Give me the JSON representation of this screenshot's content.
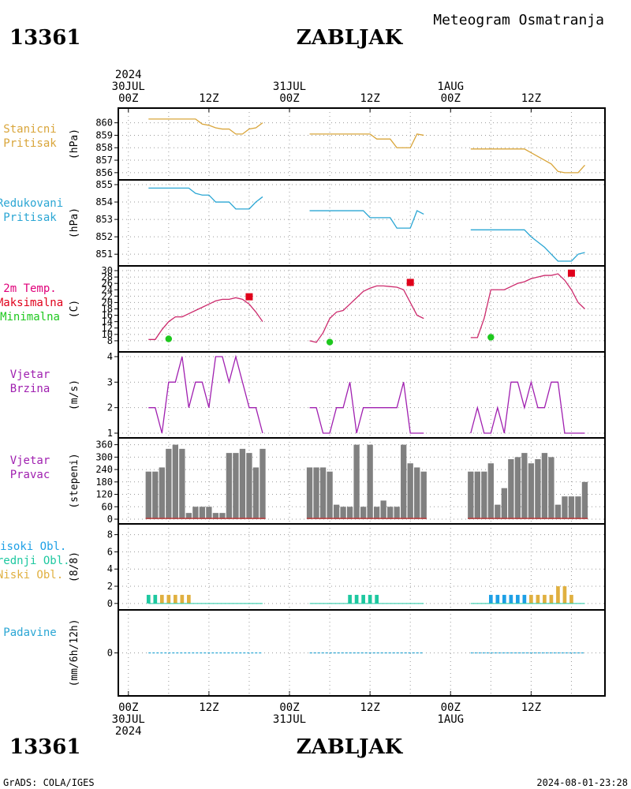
{
  "header": {
    "station_id": "13361",
    "station_name": "ZABLJAK",
    "meteogram_title": "Meteogram  Osmatranja"
  },
  "footer": {
    "station_id": "13361",
    "station_name": "ZABLJAK",
    "credit": "GrADS: COLA/IGES",
    "timestamp": "2024-08-01-23:28"
  },
  "time_axis": {
    "top_labels": [
      {
        "hour": 0,
        "lines": [
          "2024",
          "30JUL",
          "00Z"
        ]
      },
      {
        "hour": 12,
        "lines": [
          "12Z"
        ]
      },
      {
        "hour": 24,
        "lines": [
          "31JUL",
          "00Z"
        ]
      },
      {
        "hour": 36,
        "lines": [
          "12Z"
        ]
      },
      {
        "hour": 48,
        "lines": [
          "1AUG",
          "00Z"
        ]
      },
      {
        "hour": 60,
        "lines": [
          "12Z"
        ]
      }
    ],
    "bottom_labels": [
      {
        "hour": 0,
        "lines": [
          "00Z",
          "30JUL",
          "2024"
        ]
      },
      {
        "hour": 12,
        "lines": [
          "12Z"
        ]
      },
      {
        "hour": 24,
        "lines": [
          "00Z",
          "31JUL"
        ]
      },
      {
        "hour": 36,
        "lines": [
          "12Z"
        ]
      },
      {
        "hour": 48,
        "lines": [
          "00Z",
          "1AUG"
        ]
      },
      {
        "hour": 60,
        "lines": [
          "12Z"
        ]
      }
    ]
  },
  "colors": {
    "station_pressure": "#d9a53a",
    "reduced_pressure": "#2aa6d4",
    "max_temp": "#e0001a",
    "min_temp": "#1ec81e",
    "temperature_line": "#cc2a6c",
    "wind": "#a020b0",
    "bars": "#808080",
    "high_cloud": "#1ea0e6",
    "mid_cloud": "#1ec8a0",
    "low_cloud": "#e0b040",
    "precip": "#2aa6d4",
    "grid": "#999999"
  },
  "chart_data": [
    {
      "type": "line",
      "id": "station_pressure",
      "legend": [
        "Stanicni",
        "Pritisak"
      ],
      "ylabel": "(hPa)",
      "ylim": [
        855.8,
        860.8
      ],
      "yticks": [
        856,
        857,
        858,
        859,
        860
      ],
      "grid": true,
      "segments": [
        {
          "x": [
            3,
            5,
            7,
            9,
            10,
            10.5,
            11,
            12,
            13,
            14,
            15,
            16,
            17,
            18,
            19,
            20
          ],
          "y": [
            860.3,
            860.3,
            860.3,
            860.3,
            860.3,
            860.1,
            859.9,
            859.8,
            859.6,
            859.5,
            859.5,
            859.1,
            859.1,
            859.5,
            859.6,
            860.0
          ]
        },
        {
          "x": [
            27,
            29,
            31,
            33,
            35,
            36,
            37,
            38,
            39,
            40,
            41,
            42,
            43,
            44
          ],
          "y": [
            859.1,
            859.1,
            859.1,
            859.1,
            859.1,
            859.1,
            858.7,
            858.7,
            858.7,
            858.0,
            858.0,
            858.0,
            859.1,
            859.0
          ]
        },
        {
          "x": [
            51,
            53,
            55,
            57,
            59,
            60,
            61,
            62,
            63,
            64,
            65,
            66,
            67,
            68
          ],
          "y": [
            857.9,
            857.9,
            857.9,
            857.9,
            857.9,
            857.6,
            857.3,
            857.0,
            856.7,
            856.1,
            856.0,
            856.0,
            856.0,
            856.6
          ]
        }
      ]
    },
    {
      "type": "line",
      "id": "reduced_pressure",
      "legend": [
        "Redukovani",
        "Pritisak"
      ],
      "ylabel": "(hPa)",
      "ylim": [
        850.6,
        855.0
      ],
      "yticks": [
        851,
        852,
        853,
        854,
        855
      ],
      "grid": true,
      "segments": [
        {
          "x": [
            3,
            5,
            7,
            9,
            10,
            11,
            12,
            13,
            14,
            15,
            16,
            17,
            18,
            19,
            20
          ],
          "y": [
            854.8,
            854.8,
            854.8,
            854.8,
            854.5,
            854.4,
            854.4,
            854.0,
            854.0,
            854.0,
            853.6,
            853.6,
            853.6,
            854.0,
            854.3
          ]
        },
        {
          "x": [
            27,
            29,
            31,
            33,
            35,
            36,
            37,
            38,
            39,
            40,
            41,
            42,
            43,
            44
          ],
          "y": [
            853.5,
            853.5,
            853.5,
            853.5,
            853.5,
            853.1,
            853.1,
            853.1,
            853.1,
            852.5,
            852.5,
            852.5,
            853.5,
            853.3
          ]
        },
        {
          "x": [
            51,
            53,
            55,
            57,
            59,
            60,
            61,
            62,
            63,
            64,
            65,
            66,
            67,
            68
          ],
          "y": [
            852.4,
            852.4,
            852.4,
            852.4,
            852.4,
            852.0,
            851.7,
            851.4,
            851.0,
            850.6,
            850.6,
            850.6,
            851.0,
            851.1
          ]
        }
      ]
    },
    {
      "type": "line",
      "id": "temperature",
      "legend": [
        "2m Temp.",
        "Maksimalna",
        "Minimalna"
      ],
      "ylabel": "(C)",
      "ylim": [
        6,
        30
      ],
      "yticks": [
        8,
        10,
        12,
        14,
        16,
        18,
        20,
        22,
        24,
        26,
        28,
        30
      ],
      "grid": true,
      "segments": [
        {
          "x": [
            3,
            4,
            5,
            6,
            7,
            8,
            9,
            10,
            11,
            12,
            13,
            14,
            15,
            16,
            17,
            18,
            19,
            20
          ],
          "y": [
            8.4,
            8.4,
            11.5,
            14,
            15.5,
            15.5,
            16.5,
            17.5,
            18.5,
            19.5,
            20.5,
            21,
            21,
            21.5,
            21,
            19.5,
            17,
            14
          ]
        },
        {
          "x": [
            27,
            28,
            29,
            30,
            31,
            32,
            33,
            34,
            35,
            36,
            37,
            38,
            39,
            40,
            41,
            42,
            43,
            44
          ],
          "y": [
            8,
            7.5,
            10.5,
            15,
            17,
            17.5,
            19.5,
            21.5,
            23.5,
            24.5,
            25.2,
            25.2,
            25,
            24.8,
            24,
            20,
            16,
            15
          ]
        },
        {
          "x": [
            51,
            52,
            53,
            54,
            55,
            56,
            57,
            58,
            59,
            60,
            61,
            62,
            63,
            64,
            65,
            66,
            67,
            68
          ],
          "y": [
            9,
            9,
            15,
            24,
            24,
            24,
            25,
            26,
            26.5,
            27.5,
            28,
            28.5,
            28.5,
            29,
            27,
            24,
            20,
            18
          ]
        }
      ],
      "maxima": [
        {
          "x": 18,
          "y": 21.8
        },
        {
          "x": 42,
          "y": 26.3
        },
        {
          "x": 66,
          "y": 29.2
        }
      ],
      "minima": [
        {
          "x": 6,
          "y": 8.6
        },
        {
          "x": 30,
          "y": 7.6
        },
        {
          "x": 54,
          "y": 9.1
        }
      ]
    },
    {
      "type": "line",
      "id": "wind_speed",
      "legend": [
        "Vjetar",
        "Brzina"
      ],
      "ylabel": "(m/s)",
      "ylim": [
        1,
        4
      ],
      "yticks": [
        1,
        2,
        3,
        4
      ],
      "grid": true,
      "segments": [
        {
          "x": [
            3,
            4,
            5,
            6,
            7,
            8,
            9,
            10,
            11,
            12,
            13,
            14,
            15,
            16,
            17,
            18,
            19,
            20
          ],
          "y": [
            2,
            2,
            1,
            3,
            3,
            4,
            2,
            3,
            3,
            2,
            4,
            4,
            3,
            4,
            3,
            2,
            2,
            1
          ]
        },
        {
          "x": [
            27,
            28,
            29,
            30,
            31,
            32,
            33,
            34,
            35,
            36,
            37,
            38,
            39,
            40,
            41,
            42,
            43,
            44
          ],
          "y": [
            2,
            2,
            1,
            1,
            2,
            2,
            3,
            1,
            2,
            2,
            2,
            2,
            2,
            2,
            3,
            1,
            1,
            1
          ]
        },
        {
          "x": [
            51,
            52,
            53,
            54,
            55,
            56,
            57,
            58,
            59,
            60,
            61,
            62,
            63,
            64,
            65,
            66,
            67,
            68
          ],
          "y": [
            1,
            2,
            1,
            1,
            2,
            1,
            3,
            3,
            2,
            3,
            2,
            2,
            3,
            3,
            1,
            1,
            1,
            1
          ]
        }
      ]
    },
    {
      "type": "bar",
      "id": "wind_direction",
      "legend": [
        "Vjetar",
        "Pravac"
      ],
      "ylabel": "(stepeni)",
      "ylim": [
        0,
        370
      ],
      "yticks": [
        0,
        60,
        120,
        180,
        240,
        300,
        360
      ],
      "grid": true,
      "x": [
        3,
        4,
        5,
        6,
        7,
        8,
        9,
        10,
        11,
        12,
        13,
        14,
        15,
        16,
        17,
        18,
        19,
        20,
        27,
        28,
        29,
        30,
        31,
        32,
        33,
        34,
        35,
        36,
        37,
        38,
        39,
        40,
        41,
        42,
        43,
        44,
        51,
        52,
        53,
        54,
        55,
        56,
        57,
        58,
        59,
        60,
        61,
        62,
        63,
        64,
        65,
        66,
        67,
        68
      ],
      "values": [
        230,
        230,
        250,
        340,
        360,
        340,
        30,
        60,
        60,
        60,
        30,
        30,
        320,
        320,
        340,
        320,
        250,
        340,
        250,
        250,
        250,
        230,
        70,
        60,
        60,
        360,
        60,
        360,
        60,
        90,
        60,
        60,
        360,
        270,
        250,
        230,
        230,
        230,
        230,
        270,
        70,
        150,
        290,
        300,
        320,
        270,
        290,
        320,
        300,
        70,
        110,
        110,
        110,
        180
      ]
    },
    {
      "type": "bar",
      "id": "cloud_cover",
      "legend": [
        "Visoki Obl.",
        "Srednji Obl.",
        "Niski Obl."
      ],
      "ylabel": "(8/8)",
      "ylim": [
        -0.2,
        8.7
      ],
      "yticks": [
        0,
        2,
        4,
        6,
        8
      ],
      "grid": true,
      "series": [
        {
          "name": "Visoki Obl.",
          "x": [
            54,
            55,
            56,
            57,
            58,
            59
          ],
          "values": [
            1,
            1,
            1,
            1,
            1,
            1
          ]
        },
        {
          "name": "Srednji Obl.",
          "x": [
            3,
            4,
            33,
            34,
            35,
            36,
            37
          ],
          "values": [
            1,
            1,
            1,
            1,
            1,
            1,
            1
          ]
        },
        {
          "name": "Niski Obl.",
          "x": [
            5,
            6,
            7,
            8,
            9,
            60,
            61,
            62,
            63,
            64,
            65,
            66
          ],
          "values": [
            1,
            1,
            1,
            1,
            1,
            1,
            1,
            1,
            1,
            2,
            2,
            1
          ]
        }
      ]
    },
    {
      "type": "line",
      "id": "precipitation",
      "legend": [
        "Padavine"
      ],
      "ylabel": "(mm/6h/12h)",
      "ylim": [
        -3.2,
        3.2
      ],
      "yticks": [
        0
      ],
      "grid": true,
      "segments": [
        {
          "x": [
            3,
            20
          ],
          "y": [
            0,
            0
          ]
        },
        {
          "x": [
            27,
            44
          ],
          "y": [
            0,
            0
          ]
        },
        {
          "x": [
            51,
            68
          ],
          "y": [
            0,
            0
          ]
        }
      ]
    }
  ]
}
